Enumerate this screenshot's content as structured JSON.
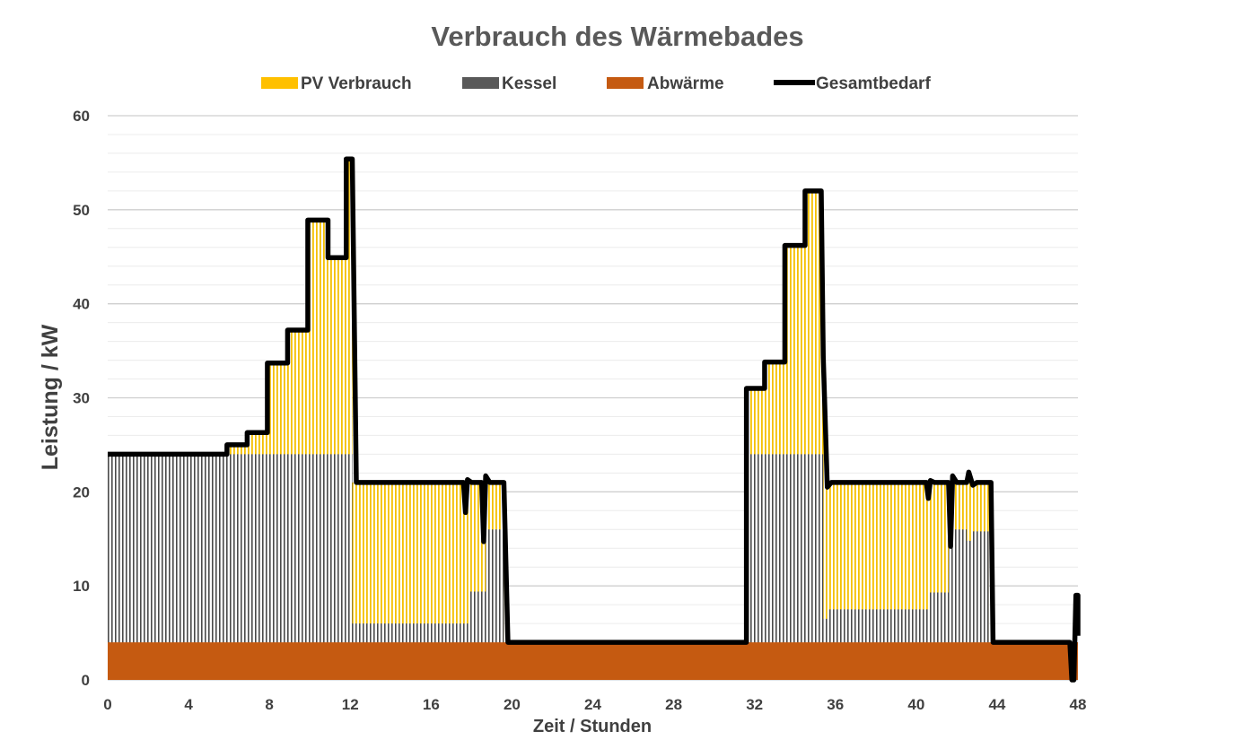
{
  "chart_data": {
    "type": "area",
    "title": "Verbrauch des Wärmebades",
    "xlabel": "Zeit / Stunden",
    "ylabel": "Leistung / kW",
    "xlim": [
      0,
      48
    ],
    "ylim": [
      0,
      60
    ],
    "x_ticks": [
      0,
      4,
      8,
      12,
      16,
      20,
      24,
      28,
      32,
      36,
      40,
      44,
      48
    ],
    "y_ticks": [
      0,
      10,
      20,
      30,
      40,
      50,
      60
    ],
    "grid": true,
    "legend_position": "top",
    "legend": [
      {
        "label": "PV Verbrauch",
        "type": "area",
        "color": "#FFC000"
      },
      {
        "label": "Kessel",
        "type": "area",
        "color": "#595959"
      },
      {
        "label": "Abwärme",
        "type": "area",
        "color": "#C55A11"
      },
      {
        "label": "Gesamtbedarf",
        "type": "line",
        "color": "#000000"
      }
    ],
    "series": [
      {
        "name": "Abwärme",
        "stack": "base",
        "points": [
          [
            0,
            4
          ],
          [
            48,
            4
          ]
        ]
      },
      {
        "name": "Kessel",
        "stack": "total",
        "points": [
          [
            0,
            24
          ],
          [
            12.1,
            24
          ],
          [
            12.1,
            6
          ],
          [
            17.9,
            6
          ],
          [
            17.9,
            9.4
          ],
          [
            18.7,
            9.4
          ],
          [
            18.7,
            16
          ],
          [
            19.6,
            16
          ],
          [
            19.6,
            4
          ],
          [
            31.6,
            4
          ],
          [
            31.6,
            24
          ],
          [
            35.4,
            24
          ],
          [
            35.4,
            6.5
          ],
          [
            35.6,
            6.5
          ],
          [
            35.6,
            7.5
          ],
          [
            40.6,
            7.5
          ],
          [
            40.6,
            9.3
          ],
          [
            41.6,
            9.3
          ],
          [
            41.6,
            16
          ],
          [
            42.5,
            16
          ],
          [
            42.5,
            14.8
          ],
          [
            42.8,
            14.8
          ],
          [
            42.8,
            15.8
          ],
          [
            43.6,
            15.8
          ],
          [
            43.6,
            4
          ],
          [
            48,
            4
          ]
        ]
      },
      {
        "name": "PV Verbrauch",
        "stack": "total",
        "points": [
          [
            0,
            24
          ],
          [
            5.9,
            24
          ],
          [
            5.9,
            25
          ],
          [
            6.9,
            25
          ],
          [
            6.9,
            26.3
          ],
          [
            7.9,
            26.3
          ],
          [
            7.9,
            33.7
          ],
          [
            8.9,
            33.7
          ],
          [
            8.9,
            37.2
          ],
          [
            9.9,
            37.2
          ],
          [
            9.9,
            48.9
          ],
          [
            10.9,
            48.9
          ],
          [
            10.9,
            44.9
          ],
          [
            11.8,
            44.9
          ],
          [
            11.8,
            55.4
          ],
          [
            12.1,
            55.4
          ],
          [
            12.1,
            21
          ],
          [
            17.7,
            21
          ],
          [
            17.7,
            17.8
          ],
          [
            17.8,
            21
          ],
          [
            18.6,
            21
          ],
          [
            18.6,
            14.7
          ],
          [
            18.8,
            21
          ],
          [
            19.6,
            21
          ],
          [
            19.6,
            4
          ],
          [
            31.6,
            4
          ],
          [
            31.6,
            31
          ],
          [
            32.5,
            31
          ],
          [
            32.5,
            33.8
          ],
          [
            33.5,
            33.8
          ],
          [
            33.5,
            46.2
          ],
          [
            34.5,
            46.2
          ],
          [
            34.5,
            52
          ],
          [
            35.3,
            52
          ],
          [
            35.3,
            34.4
          ],
          [
            35.5,
            34.4
          ],
          [
            35.5,
            20.5
          ],
          [
            35.7,
            21
          ],
          [
            40.5,
            21
          ],
          [
            40.6,
            19.3
          ],
          [
            40.7,
            21
          ],
          [
            41.6,
            21
          ],
          [
            41.6,
            14.2
          ],
          [
            41.7,
            21
          ],
          [
            43.6,
            21
          ],
          [
            43.6,
            4
          ],
          [
            48,
            4
          ]
        ]
      },
      {
        "name": "Gesamtbedarf",
        "type": "line",
        "points": [
          [
            0,
            24
          ],
          [
            5.9,
            24
          ],
          [
            5.9,
            25
          ],
          [
            6.9,
            25
          ],
          [
            6.9,
            26.3
          ],
          [
            7.9,
            26.3
          ],
          [
            7.9,
            33.7
          ],
          [
            8.9,
            33.7
          ],
          [
            8.9,
            37.2
          ],
          [
            9.9,
            37.2
          ],
          [
            9.9,
            48.9
          ],
          [
            10.9,
            48.9
          ],
          [
            10.9,
            44.9
          ],
          [
            11.8,
            44.9
          ],
          [
            11.8,
            55.4
          ],
          [
            12.1,
            55.4
          ],
          [
            12.3,
            21
          ],
          [
            17.6,
            21
          ],
          [
            17.7,
            17.8
          ],
          [
            17.8,
            21.3
          ],
          [
            18.0,
            21
          ],
          [
            18.5,
            21
          ],
          [
            18.6,
            14.7
          ],
          [
            18.7,
            21.7
          ],
          [
            18.9,
            21
          ],
          [
            19.5,
            21
          ],
          [
            19.6,
            21
          ],
          [
            19.8,
            4
          ],
          [
            31.6,
            4
          ],
          [
            31.6,
            31
          ],
          [
            32.5,
            31
          ],
          [
            32.5,
            33.8
          ],
          [
            33.5,
            33.8
          ],
          [
            33.5,
            46.2
          ],
          [
            34.5,
            46.2
          ],
          [
            34.5,
            52
          ],
          [
            35.3,
            52
          ],
          [
            35.4,
            34.4
          ],
          [
            35.6,
            20.5
          ],
          [
            35.8,
            21
          ],
          [
            40.5,
            21
          ],
          [
            40.6,
            19.3
          ],
          [
            40.7,
            21.2
          ],
          [
            40.9,
            21
          ],
          [
            41.6,
            21
          ],
          [
            41.7,
            14.2
          ],
          [
            41.8,
            21.7
          ],
          [
            42.0,
            21
          ],
          [
            42.5,
            21
          ],
          [
            42.6,
            22.1
          ],
          [
            42.8,
            20.7
          ],
          [
            43.0,
            21
          ],
          [
            43.7,
            21
          ],
          [
            43.8,
            4
          ],
          [
            47.6,
            4
          ],
          [
            47.7,
            0
          ],
          [
            47.8,
            0
          ],
          [
            47.9,
            9
          ],
          [
            48.0,
            9
          ],
          [
            48.0,
            4.7
          ]
        ]
      }
    ]
  }
}
